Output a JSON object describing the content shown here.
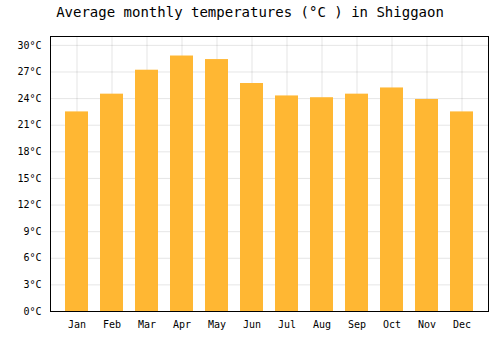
{
  "chart_data": {
    "type": "bar",
    "title": "Average monthly temperatures (°C ) in Shiggaon",
    "categories": [
      "Jan",
      "Feb",
      "Mar",
      "Apr",
      "May",
      "Jun",
      "Jul",
      "Aug",
      "Sep",
      "Oct",
      "Nov",
      "Dec"
    ],
    "values": [
      22.5,
      24.5,
      27.2,
      28.8,
      28.4,
      25.7,
      24.3,
      24.1,
      24.5,
      25.2,
      23.9,
      22.5
    ],
    "color": "#FFB733",
    "ylim": [
      0,
      31
    ],
    "yticks": [
      {
        "value": 0,
        "label": "0°C"
      },
      {
        "value": 3,
        "label": "3°C"
      },
      {
        "value": 6,
        "label": "6°C"
      },
      {
        "value": 9,
        "label": "9°C"
      },
      {
        "value": 12,
        "label": "12°C"
      },
      {
        "value": 15,
        "label": "15°C"
      },
      {
        "value": 18,
        "label": "18°C"
      },
      {
        "value": 21,
        "label": "21°C"
      },
      {
        "value": 24,
        "label": "24°C"
      },
      {
        "value": 27,
        "label": "27°C"
      },
      {
        "value": 30,
        "label": "30°C"
      }
    ],
    "grid": true
  }
}
